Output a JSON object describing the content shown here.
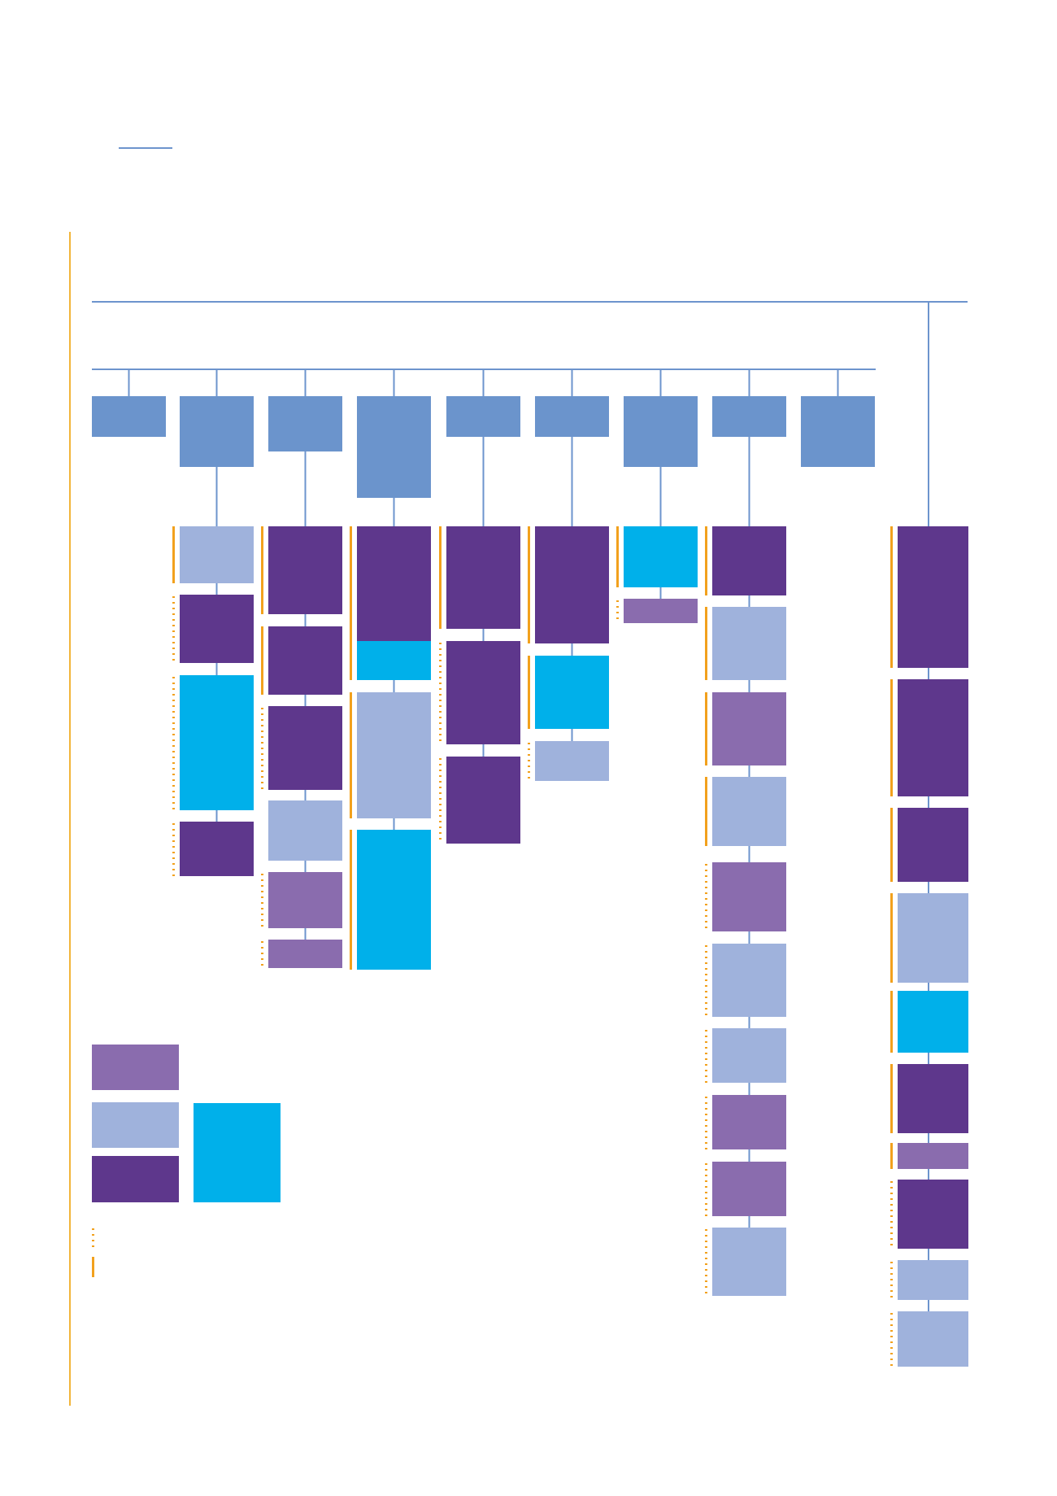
{
  "colors": {
    "connector": "#6d94cd",
    "header": "#6b94cc",
    "dark_purple": "#5e378c",
    "mid_purple": "#8a6cae",
    "light_blue": "#9fb2dc",
    "cyan": "#00b0ea",
    "orange": "#f2a11d",
    "page_rule": "#f2b53a"
  },
  "legend": {
    "swatches": [
      "mid_purple",
      "light_blue",
      "dark_purple",
      "cyan"
    ],
    "markers": [
      "dotted",
      "solid"
    ]
  },
  "branches": [
    {
      "header": "header",
      "children": []
    },
    {
      "header": "header",
      "children": [
        {
          "color": "light_blue",
          "marker": "solid"
        },
        {
          "color": "dark_purple",
          "marker": "dotted"
        },
        {
          "color": "cyan",
          "marker": "dotted"
        },
        {
          "color": "dark_purple",
          "marker": "dotted"
        }
      ]
    },
    {
      "header": "header",
      "children": [
        {
          "color": "dark_purple",
          "marker": "solid"
        },
        {
          "color": "dark_purple",
          "marker": "solid"
        },
        {
          "color": "dark_purple",
          "marker": "dotted"
        },
        {
          "color": "light_blue",
          "marker": "none"
        },
        {
          "color": "mid_purple",
          "marker": "dotted"
        },
        {
          "color": "mid_purple",
          "marker": "dotted"
        }
      ]
    },
    {
      "header": "header",
      "children": [
        {
          "color": "dark_purple",
          "marker": "solid"
        },
        {
          "color": "cyan",
          "marker": "solid"
        },
        {
          "color": "light_blue",
          "marker": "solid"
        },
        {
          "color": "cyan",
          "marker": "solid"
        }
      ]
    },
    {
      "header": "header",
      "children": [
        {
          "color": "dark_purple",
          "marker": "solid"
        },
        {
          "color": "dark_purple",
          "marker": "dotted"
        },
        {
          "color": "dark_purple",
          "marker": "dotted"
        }
      ]
    },
    {
      "header": "header",
      "children": [
        {
          "color": "dark_purple",
          "marker": "solid"
        },
        {
          "color": "cyan",
          "marker": "solid"
        },
        {
          "color": "light_blue",
          "marker": "dotted"
        }
      ]
    },
    {
      "header": "header",
      "children": [
        {
          "color": "cyan",
          "marker": "solid"
        },
        {
          "color": "mid_purple",
          "marker": "dotted"
        }
      ]
    },
    {
      "header": "header",
      "children": [
        {
          "color": "dark_purple",
          "marker": "solid"
        },
        {
          "color": "light_blue",
          "marker": "solid"
        },
        {
          "color": "mid_purple",
          "marker": "solid"
        },
        {
          "color": "light_blue",
          "marker": "solid"
        },
        {
          "color": "mid_purple",
          "marker": "dotted"
        },
        {
          "color": "light_blue",
          "marker": "dotted"
        },
        {
          "color": "light_blue",
          "marker": "dotted"
        },
        {
          "color": "mid_purple",
          "marker": "dotted"
        },
        {
          "color": "mid_purple",
          "marker": "dotted"
        },
        {
          "color": "light_blue",
          "marker": "dotted"
        }
      ]
    },
    {
      "header": "header",
      "children": []
    }
  ],
  "right_branch": {
    "children": [
      {
        "color": "dark_purple",
        "marker": "solid"
      },
      {
        "color": "dark_purple",
        "marker": "solid"
      },
      {
        "color": "dark_purple",
        "marker": "solid"
      },
      {
        "color": "light_blue",
        "marker": "solid"
      },
      {
        "color": "cyan",
        "marker": "solid"
      },
      {
        "color": "dark_purple",
        "marker": "solid"
      },
      {
        "color": "mid_purple",
        "marker": "solid"
      },
      {
        "color": "dark_purple",
        "marker": "dotted"
      },
      {
        "color": "light_blue",
        "marker": "dotted"
      },
      {
        "color": "light_blue",
        "marker": "dotted"
      }
    ]
  }
}
